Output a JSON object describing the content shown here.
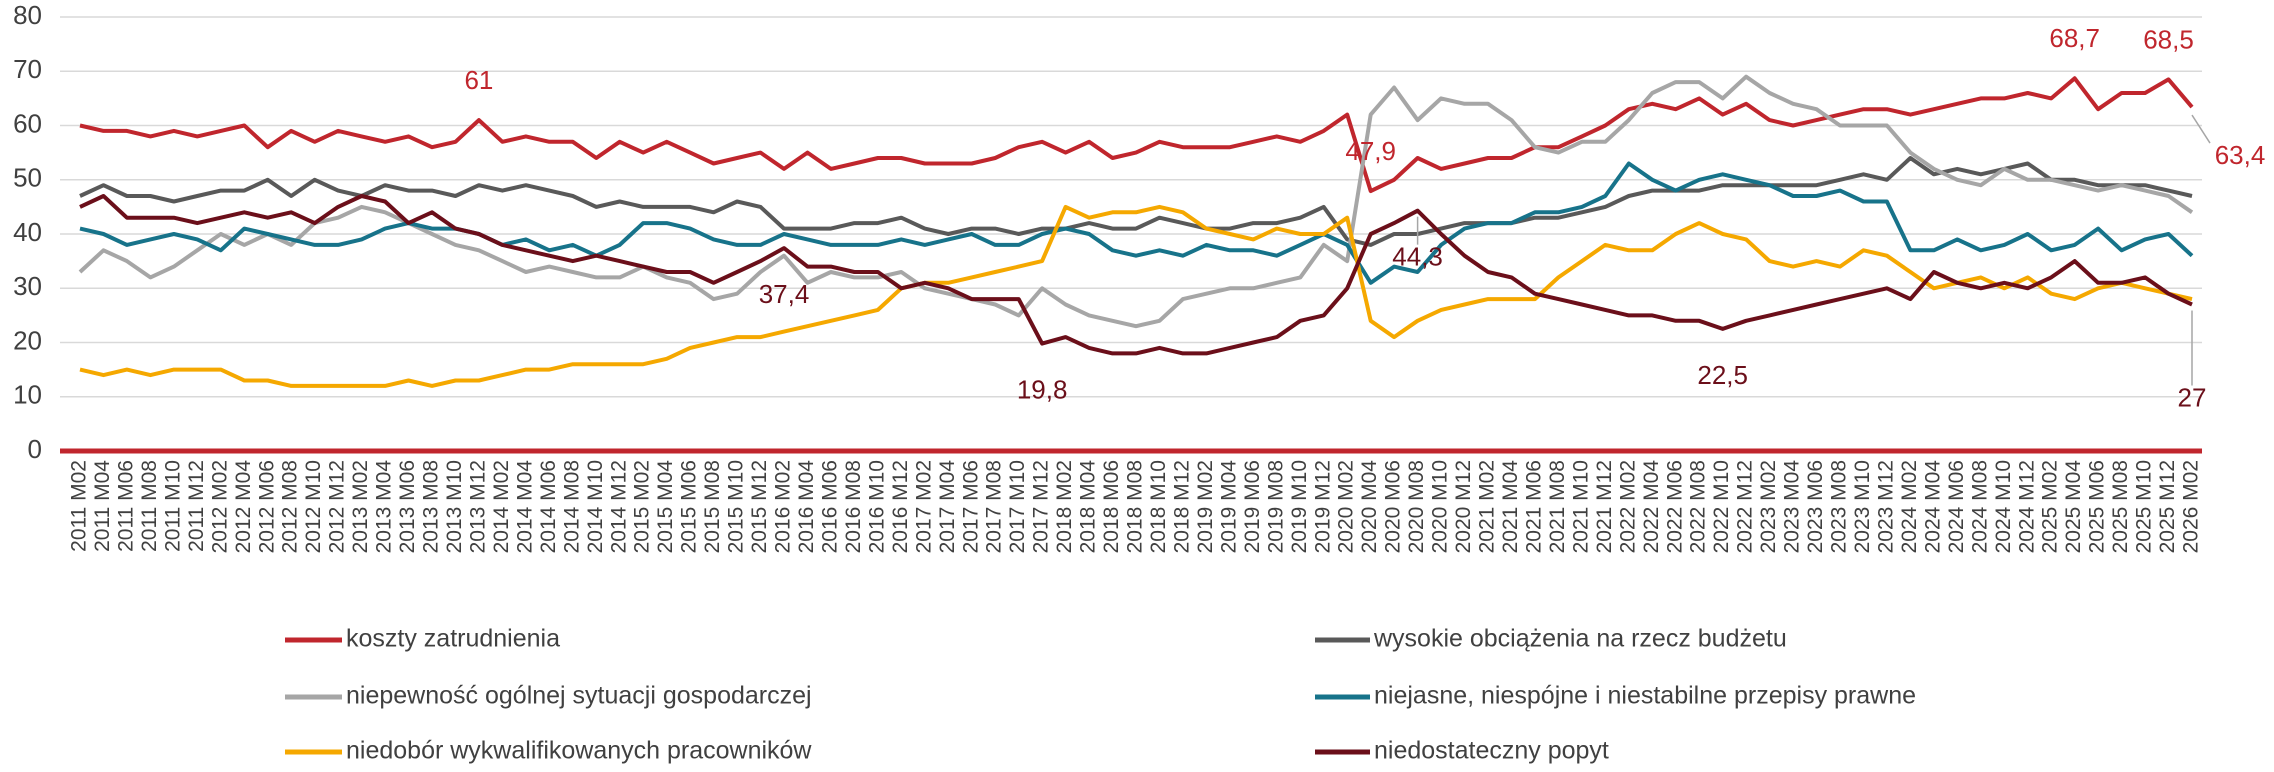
{
  "chart_data": {
    "type": "line",
    "categories": [
      "2011 M02",
      "2011 M04",
      "2011 M06",
      "2011 M08",
      "2011 M10",
      "2011 M12",
      "2012 M02",
      "2012 M04",
      "2012 M06",
      "2012 M08",
      "2012 M10",
      "2012 M12",
      "2013 M02",
      "2013 M04",
      "2013 M06",
      "2013 M08",
      "2013 M10",
      "2013 M12",
      "2014 M02",
      "2014 M04",
      "2014 M06",
      "2014 M08",
      "2014 M10",
      "2014 M12",
      "2015 M02",
      "2015 M04",
      "2015 M06",
      "2015 M08",
      "2015 M10",
      "2015 M12",
      "2016 M02",
      "2016 M04",
      "2016 M06",
      "2016 M08",
      "2016 M10",
      "2016 M12",
      "2017 M02",
      "2017 M04",
      "2017 M06",
      "2017 M08",
      "2017 M10",
      "2017 M12",
      "2018 M02",
      "2018 M04",
      "2018 M06",
      "2018 M08",
      "2018 M10",
      "2018 M12",
      "2019 M02",
      "2019 M04",
      "2019 M06",
      "2019 M08",
      "2019 M10",
      "2019 M12",
      "2020 M02",
      "2020 M04",
      "2020 M06",
      "2020 M08",
      "2020 M10",
      "2020 M12",
      "2021 M02",
      "2021 M04",
      "2021 M06",
      "2021 M08",
      "2021 M10",
      "2021 M12",
      "2022 M02",
      "2022 M04",
      "2022 M06",
      "2022 M08",
      "2022 M10",
      "2022 M12",
      "2023 M02",
      "2023 M04",
      "2023 M06",
      "2023 M08",
      "2023 M10",
      "2023 M12",
      "2024 M02",
      "2024 M04",
      "2024 M06",
      "2024 M08",
      "2024 M10",
      "2024 M12",
      "2025 M02",
      "2025 M04",
      "2025 M06",
      "2025 M08",
      "2025 M10",
      "2025 M12",
      "2026 M02"
    ],
    "ylim": [
      0,
      80
    ],
    "yticks": [
      0,
      10,
      20,
      30,
      40,
      50,
      60,
      70,
      80
    ],
    "grid": true,
    "series": [
      {
        "name": "koszty zatrudnienia",
        "color": "#c0262d",
        "values": [
          60,
          59,
          59,
          58,
          59,
          58,
          59,
          60,
          56,
          59,
          57,
          59,
          58,
          57,
          58,
          56,
          57,
          61,
          57,
          58,
          57,
          57,
          54,
          57,
          55,
          57,
          55,
          53,
          54,
          55,
          52,
          55,
          52,
          53,
          54,
          54,
          53,
          53,
          53,
          54,
          56,
          57,
          55,
          57,
          54,
          55,
          57,
          56,
          56,
          56,
          57,
          58,
          57,
          59,
          62,
          47.9,
          50,
          54,
          52,
          53,
          54,
          54,
          56,
          56,
          58,
          60,
          63,
          64,
          63,
          65,
          62,
          64,
          61,
          60,
          61,
          62,
          63,
          63,
          62,
          63,
          64,
          65,
          65,
          66,
          65,
          68.7,
          63,
          66,
          66,
          68.5,
          63.4
        ],
        "value_labels": [
          null,
          null,
          null,
          null,
          null,
          null,
          null,
          null,
          null,
          null,
          null,
          null,
          null,
          null,
          null,
          null,
          null,
          "61",
          null,
          null,
          null,
          null,
          null,
          null,
          null,
          null,
          null,
          null,
          null,
          null,
          null,
          null,
          null,
          null,
          null,
          null,
          null,
          null,
          null,
          null,
          null,
          null,
          null,
          null,
          null,
          null,
          null,
          null,
          null,
          null,
          null,
          null,
          null,
          null,
          null,
          "47,9",
          null,
          null,
          null,
          null,
          null,
          null,
          null,
          null,
          null,
          null,
          null,
          null,
          null,
          null,
          null,
          null,
          null,
          null,
          null,
          null,
          null,
          null,
          null,
          null,
          null,
          null,
          null,
          null,
          null,
          "68,7",
          null,
          null,
          null,
          "68,5",
          "63,4"
        ]
      },
      {
        "name": "wysokie obciążenia na rzecz budżetu",
        "color": "#595959",
        "values": [
          47,
          49,
          47,
          47,
          46,
          47,
          48,
          48,
          50,
          47,
          50,
          48,
          47,
          49,
          48,
          48,
          47,
          49,
          48,
          49,
          48,
          47,
          45,
          46,
          45,
          45,
          45,
          44,
          46,
          45,
          41,
          41,
          41,
          42,
          42,
          43,
          41,
          40,
          41,
          41,
          40,
          41,
          41,
          42,
          41,
          41,
          43,
          42,
          41,
          41,
          42,
          42,
          43,
          45,
          39,
          38,
          40,
          40,
          41,
          42,
          42,
          42,
          43,
          43,
          44,
          45,
          47,
          48,
          48,
          48,
          49,
          49,
          49,
          49,
          49,
          50,
          51,
          50,
          54,
          51,
          52,
          51,
          52,
          53,
          50,
          50,
          49,
          49,
          49,
          48,
          47
        ]
      },
      {
        "name": "niepewność ogólnej sytuacji gospodarczej",
        "color": "#a6a6a6",
        "values": [
          33,
          37,
          35,
          32,
          34,
          37,
          40,
          38,
          40,
          38,
          42,
          43,
          45,
          44,
          42,
          40,
          38,
          37,
          35,
          33,
          34,
          33,
          32,
          32,
          34,
          32,
          31,
          28,
          29,
          33,
          36,
          31,
          33,
          32,
          32,
          33,
          30,
          29,
          28,
          27,
          25,
          30,
          27,
          25,
          24,
          23,
          24,
          28,
          29,
          30,
          30,
          31,
          32,
          38,
          35,
          62,
          67,
          61,
          65,
          64,
          64,
          61,
          56,
          55,
          57,
          57,
          61,
          66,
          68,
          68,
          65,
          69,
          66,
          64,
          63,
          60,
          60,
          60,
          55,
          52,
          50,
          49,
          52,
          50,
          50,
          49,
          48,
          49,
          48,
          47,
          44
        ]
      },
      {
        "name": "niejasne, niespójne i niestabilne przepisy prawne",
        "color": "#17738a",
        "values": [
          41,
          40,
          38,
          39,
          40,
          39,
          37,
          41,
          40,
          39,
          38,
          38,
          39,
          41,
          42,
          41,
          41,
          40,
          38,
          39,
          37,
          38,
          36,
          38,
          42,
          42,
          41,
          39,
          38,
          38,
          40,
          39,
          38,
          38,
          38,
          39,
          38,
          39,
          40,
          38,
          38,
          40,
          41,
          40,
          37,
          36,
          37,
          36,
          38,
          37,
          37,
          36,
          38,
          40,
          38,
          31,
          34,
          33,
          38,
          41,
          42,
          42,
          44,
          44,
          45,
          47,
          53,
          50,
          48,
          50,
          51,
          50,
          49,
          47,
          47,
          48,
          46,
          46,
          37,
          37,
          39,
          37,
          38,
          40,
          37,
          38,
          41,
          37,
          39,
          40,
          36
        ]
      },
      {
        "name": "niedobór wykwalifikowanych pracowników",
        "color": "#f5a800",
        "values": [
          15,
          14,
          15,
          14,
          15,
          15,
          15,
          13,
          13,
          12,
          12,
          12,
          12,
          12,
          13,
          12,
          13,
          13,
          14,
          15,
          15,
          16,
          16,
          16,
          16,
          17,
          19,
          20,
          21,
          21,
          22,
          23,
          24,
          25,
          26,
          30,
          31,
          31,
          32,
          33,
          34,
          35,
          45,
          43,
          44,
          44,
          45,
          44,
          41,
          40,
          39,
          41,
          40,
          40,
          43,
          24,
          21,
          24,
          26,
          27,
          28,
          28,
          28,
          32,
          35,
          38,
          37,
          37,
          40,
          42,
          40,
          39,
          35,
          34,
          35,
          34,
          37,
          36,
          33,
          30,
          31,
          32,
          30,
          32,
          29,
          28,
          30,
          31,
          30,
          29,
          28
        ]
      },
      {
        "name": "niedostateczny popyt",
        "color": "#6b0f1a",
        "values": [
          45,
          47,
          43,
          43,
          43,
          42,
          43,
          44,
          43,
          44,
          42,
          45,
          47,
          46,
          42,
          44,
          41,
          40,
          38,
          37,
          36,
          35,
          36,
          35,
          34,
          33,
          33,
          31,
          33,
          35,
          37.4,
          34,
          34,
          33,
          33,
          30,
          31,
          30,
          28,
          28,
          28,
          19.8,
          21,
          19,
          18,
          18,
          19,
          18,
          18,
          19,
          20,
          21,
          24,
          25,
          30,
          40,
          42,
          44.3,
          40,
          36,
          33,
          32,
          29,
          28,
          27,
          26,
          25,
          25,
          24,
          24,
          22.5,
          24,
          25,
          26,
          27,
          28,
          29,
          30,
          28,
          33,
          31,
          30,
          31,
          30,
          32,
          35,
          31,
          31,
          32,
          29,
          27
        ],
        "value_labels": [
          null,
          null,
          null,
          null,
          null,
          null,
          null,
          null,
          null,
          null,
          null,
          null,
          null,
          null,
          null,
          null,
          null,
          null,
          null,
          null,
          null,
          null,
          null,
          null,
          null,
          null,
          null,
          null,
          null,
          null,
          "37,4",
          null,
          null,
          null,
          null,
          null,
          null,
          null,
          null,
          null,
          null,
          "19,8",
          null,
          null,
          null,
          null,
          null,
          null,
          null,
          null,
          null,
          null,
          null,
          null,
          null,
          null,
          null,
          "44,3",
          null,
          null,
          null,
          null,
          null,
          null,
          null,
          null,
          null,
          null,
          null,
          null,
          "22,5",
          null,
          null,
          null,
          null,
          null,
          null,
          null,
          null,
          null,
          null,
          null,
          null,
          null,
          null,
          null,
          null,
          null,
          null,
          null,
          "27"
        ]
      }
    ]
  }
}
